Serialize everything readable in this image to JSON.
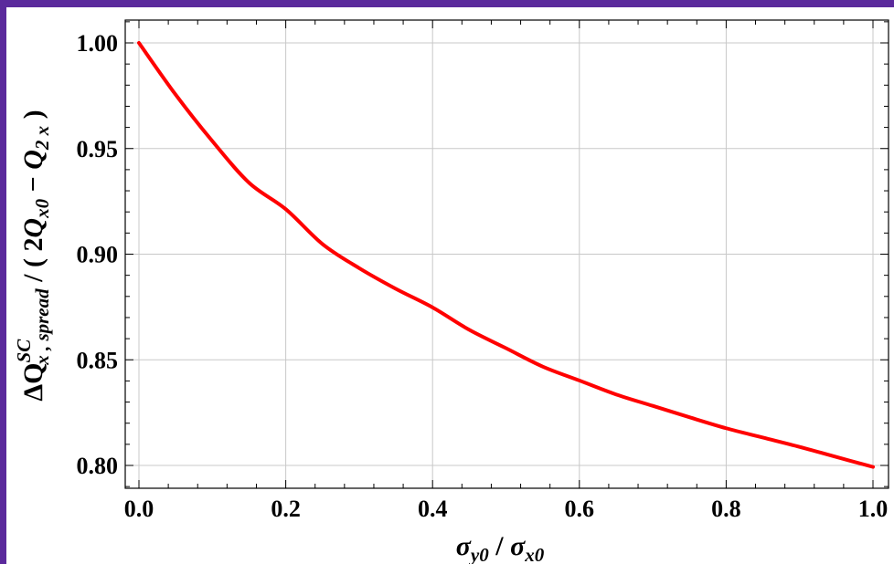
{
  "colors": {
    "frame_border": "#5b2a9c",
    "curve": "#ff0000",
    "grid": "#c8c8c8",
    "axis": "#000000"
  },
  "chart_data": {
    "type": "line",
    "title": "",
    "xlabel": {
      "text": "σ_y0 / σ_x0",
      "parts": [
        {
          "text": "σ",
          "style": "italic"
        },
        {
          "text": "y0",
          "style": "italic-sub"
        },
        {
          "text": " / ",
          "style": "normal"
        },
        {
          "text": "σ",
          "style": "italic"
        },
        {
          "text": "x0",
          "style": "italic-sub"
        }
      ]
    },
    "ylabel": {
      "text": "ΔQ^SC_x,spread / ( 2Q_x0 − Q_2x )",
      "parts": [
        {
          "text": "ΔQ",
          "style": "normal"
        },
        {
          "text": "SC",
          "style": "italic-sup"
        },
        {
          "text": "x , spread",
          "style": "italic-sub"
        },
        {
          "text": " / ( 2",
          "style": "normal"
        },
        {
          "text": "Q",
          "style": "italic"
        },
        {
          "text": "x0",
          "style": "italic-sub"
        },
        {
          "text": " − ",
          "style": "normal"
        },
        {
          "text": "Q",
          "style": "italic"
        },
        {
          "text": "2 x",
          "style": "italic-sub"
        },
        {
          "text": " )",
          "style": "normal"
        }
      ]
    },
    "xlim": [
      0,
      1
    ],
    "ylim": [
      0.79,
      1.01
    ],
    "x_ticks": [
      0.0,
      0.2,
      0.4,
      0.6,
      0.8,
      1.0
    ],
    "x_tick_labels": [
      "0.0",
      "0.2",
      "0.4",
      "0.6",
      "0.8",
      "1.0"
    ],
    "y_ticks": [
      0.8,
      0.85,
      0.9,
      0.95,
      1.0
    ],
    "y_tick_labels": [
      "0.80",
      "0.85",
      "0.90",
      "0.95",
      "1.00"
    ],
    "grid": true,
    "series": [
      {
        "x": [
          0.0,
          0.05,
          0.1,
          0.15,
          0.2,
          0.25,
          0.3,
          0.35,
          0.4,
          0.45,
          0.5,
          0.55,
          0.6,
          0.65,
          0.7,
          0.75,
          0.8,
          0.85,
          0.9,
          0.95,
          1.0
        ],
        "y": [
          1.0,
          0.9755,
          0.9535,
          0.9338,
          0.9213,
          0.9048,
          0.8934,
          0.8836,
          0.8748,
          0.8642,
          0.8555,
          0.8468,
          0.8402,
          0.8336,
          0.8282,
          0.8228,
          0.8176,
          0.8132,
          0.8088,
          0.804,
          0.7993
        ]
      }
    ]
  }
}
